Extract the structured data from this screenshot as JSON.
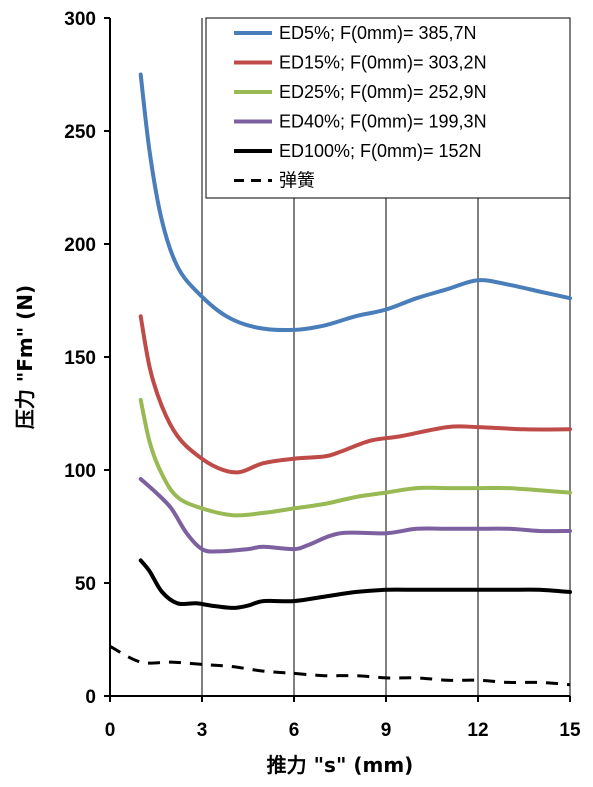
{
  "chart_data": {
    "type": "line",
    "xlabel": "推力 \"s\" (mm)",
    "ylabel": "压力 \"Fm\" (N)",
    "xlim": [
      0,
      15
    ],
    "ylim": [
      0,
      300
    ],
    "xticks": [
      0,
      3,
      6,
      9,
      12,
      15
    ],
    "yticks": [
      0,
      50,
      100,
      150,
      200,
      250,
      300
    ],
    "grid": "vertical major gridlines",
    "legend_position": "top-right",
    "series": [
      {
        "name": "ED5%; F(0mm)= 385,7N",
        "color": "#4a7ebb",
        "dash": "solid",
        "x": [
          1.0,
          1.3,
          1.7,
          2.2,
          2.9,
          3.8,
          4.8,
          6.0,
          7.0,
          8.0,
          9.0,
          10.0,
          11.0,
          12.0,
          13.0,
          14.0,
          15.0
        ],
        "y": [
          275,
          240,
          210,
          190,
          178,
          168,
          163,
          162,
          164,
          168,
          171,
          176,
          180,
          184,
          182,
          179,
          176
        ]
      },
      {
        "name": "ED15%; F(0mm)= 303,2N",
        "color": "#be4b48",
        "dash": "solid",
        "x": [
          1.0,
          1.3,
          1.7,
          2.2,
          2.8,
          3.5,
          4.2,
          5.0,
          6.0,
          7.0,
          7.5,
          8.5,
          9.5,
          11.0,
          12.0,
          13.5,
          15.0
        ],
        "y": [
          168,
          145,
          128,
          115,
          107,
          101,
          99,
          103,
          105,
          106,
          108,
          113,
          115,
          119,
          119,
          118,
          118
        ]
      },
      {
        "name": "ED25%; F(0mm)= 252,9N",
        "color": "#98b954",
        "dash": "solid",
        "x": [
          1.0,
          1.3,
          1.7,
          2.2,
          3.0,
          4.0,
          5.0,
          6.0,
          7.0,
          8.0,
          9.0,
          10.0,
          11.0,
          12.0,
          13.0,
          14.0,
          15.0
        ],
        "y": [
          131,
          112,
          98,
          88,
          83,
          80,
          81,
          83,
          85,
          88,
          90,
          92,
          92,
          92,
          92,
          91,
          90
        ]
      },
      {
        "name": "ED40%; F(0mm)= 199,3N",
        "color": "#7d60a0",
        "dash": "solid",
        "x": [
          1.0,
          1.5,
          2.0,
          2.5,
          3.0,
          3.5,
          4.5,
          5.0,
          6.0,
          6.5,
          7.5,
          9.0,
          10.0,
          11.0,
          12.0,
          13.0,
          14.0,
          15.0
        ],
        "y": [
          96,
          90,
          83,
          72,
          65,
          64,
          65,
          66,
          65,
          67,
          72,
          72,
          74,
          74,
          74,
          74,
          73,
          73
        ]
      },
      {
        "name": "ED100%; F(0mm)= 152N",
        "color": "#000000",
        "dash": "solid",
        "x": [
          1.0,
          1.3,
          1.7,
          2.2,
          2.8,
          3.3,
          4.0,
          4.5,
          5.0,
          6.0,
          7.0,
          8.0,
          9.0,
          10.0,
          11.0,
          12.0,
          13.0,
          14.0,
          15.0
        ],
        "y": [
          60,
          55,
          46,
          41,
          41,
          40,
          39,
          40,
          42,
          42,
          44,
          46,
          47,
          47,
          47,
          47,
          47,
          47,
          46
        ]
      },
      {
        "name": "弹簧",
        "color": "#000000",
        "dash": "dashed",
        "x": [
          0,
          1.0,
          2.0,
          3.0,
          4.0,
          5.0,
          6.0,
          7.0,
          8.0,
          9.0,
          10.0,
          11.0,
          12.0,
          13.0,
          14.0,
          15.0
        ],
        "y": [
          22,
          15,
          15,
          14,
          13,
          11,
          10,
          9,
          9,
          8,
          8,
          7,
          7,
          6,
          6,
          5
        ]
      }
    ]
  }
}
